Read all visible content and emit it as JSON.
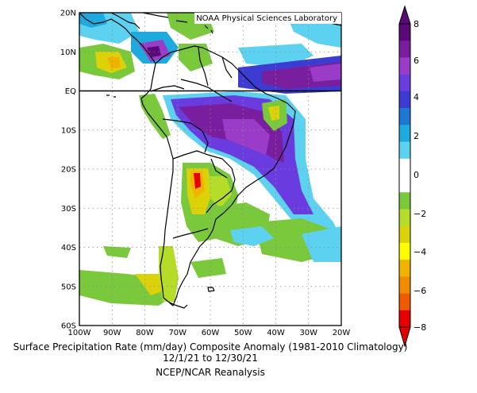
{
  "map": {
    "credit": "NOAA Physical Sciences Laboratory",
    "lat_labels": [
      "20N",
      "10N",
      "EQ",
      "10S",
      "20S",
      "30S",
      "40S",
      "50S",
      "60S"
    ],
    "lon_labels": [
      "100W",
      "90W",
      "80W",
      "70W",
      "60W",
      "50W",
      "40W",
      "30W",
      "20W"
    ],
    "extent": {
      "lon": [
        -100,
        -20
      ],
      "lat": [
        -60,
        20
      ]
    }
  },
  "colorbar": {
    "tick_labels": [
      "8",
      "6",
      "4",
      "2",
      "0",
      "−2",
      "−4",
      "−6",
      "−8"
    ],
    "colors": [
      "#5a0a78",
      "#7a1ea0",
      "#9a3cc8",
      "#6a3ce0",
      "#3c3cd2",
      "#1e78d2",
      "#1eaade",
      "#5cd2f0",
      "#ffffff",
      "#ffffff",
      "#7ac83c",
      "#b4dc28",
      "#dcd20a",
      "#ffff00",
      "#f0b400",
      "#f08c00",
      "#f05a00",
      "#e60000"
    ]
  },
  "caption": {
    "line1": "Surface Precipitation Rate (mm/day) Composite Anomaly (1981-2010 Climatology)",
    "line2": "12/1/21  to 12/30/21",
    "line3": "NCEP/NCAR Reanalysis"
  }
}
